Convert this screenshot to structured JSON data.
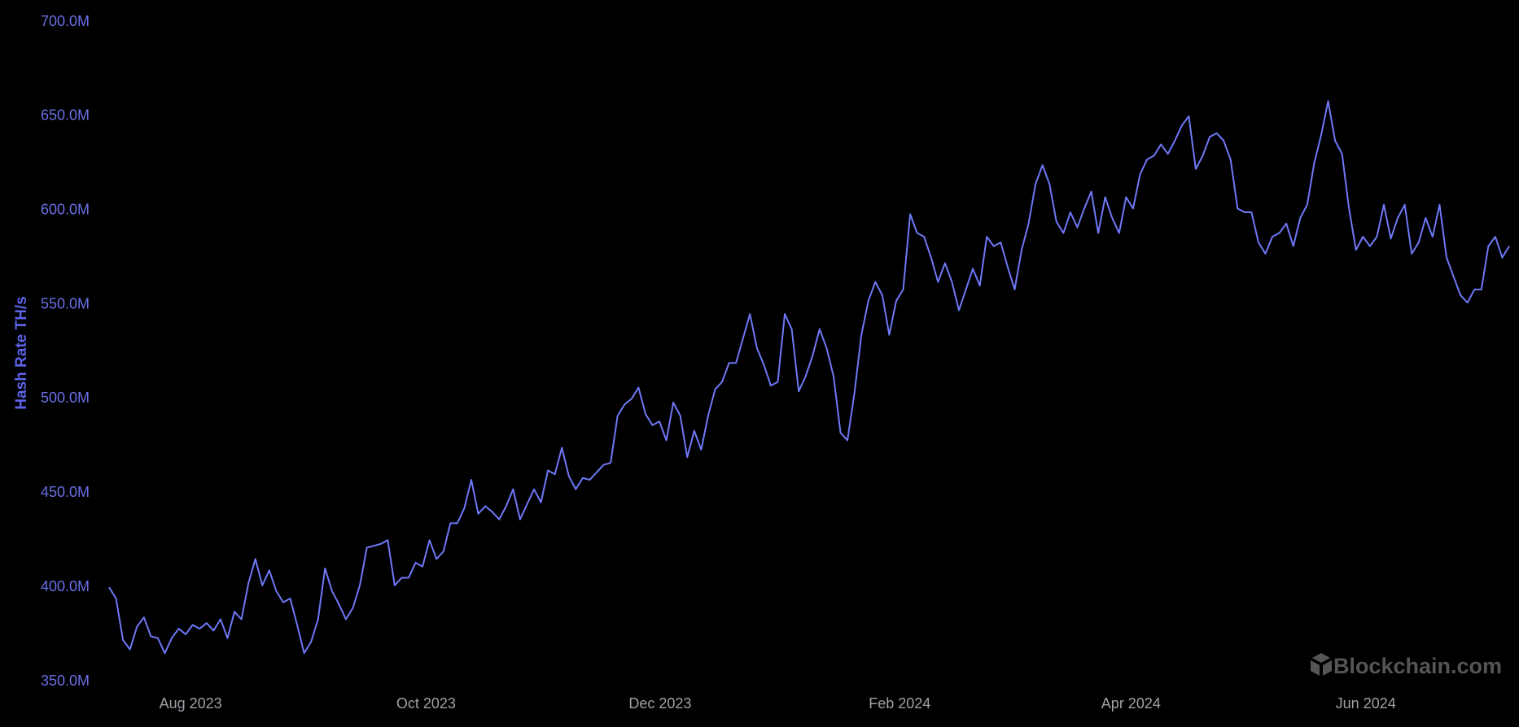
{
  "chart_data": {
    "type": "line",
    "y_axis_label": "Hash Rate TH/s",
    "watermark": "Blockchain.com",
    "color": "#6f78f7",
    "grid": false,
    "xlim": [
      0,
      201
    ],
    "xticks": [
      {
        "value": 11.7,
        "label": "Aug 2023"
      },
      {
        "value": 45.5,
        "label": "Oct 2023"
      },
      {
        "value": 79.1,
        "label": "Dec 2023"
      },
      {
        "value": 113.5,
        "label": "Feb 2024"
      },
      {
        "value": 146.7,
        "label": "Apr 2024"
      },
      {
        "value": 180.4,
        "label": "Jun 2024"
      }
    ],
    "ylim": [
      350000000,
      700000000
    ],
    "yticks": [
      {
        "value": 350000000,
        "label": "350.0M"
      },
      {
        "value": 400000000,
        "label": "400.0M"
      },
      {
        "value": 450000000,
        "label": "450.0M"
      },
      {
        "value": 500000000,
        "label": "500.0M"
      },
      {
        "value": 550000000,
        "label": "550.0M"
      },
      {
        "value": 600000000,
        "label": "600.0M"
      },
      {
        "value": 650000000,
        "label": "650.0M"
      },
      {
        "value": 700000000,
        "label": "700.0M"
      }
    ],
    "values": [
      400000000,
      394000000,
      372000000,
      367000000,
      379000000,
      384000000,
      374000000,
      373000000,
      365000000,
      373000000,
      378000000,
      375000000,
      380000000,
      378000000,
      381000000,
      377000000,
      383000000,
      373000000,
      387000000,
      383000000,
      402000000,
      415000000,
      401000000,
      409000000,
      398000000,
      392000000,
      394000000,
      380000000,
      365000000,
      371000000,
      383000000,
      410000000,
      398000000,
      391000000,
      383000000,
      389000000,
      401000000,
      421000000,
      422000000,
      423000000,
      425000000,
      401000000,
      405000000,
      405000000,
      413000000,
      411000000,
      425000000,
      415000000,
      419000000,
      434000000,
      434000000,
      442000000,
      457000000,
      439000000,
      443000000,
      440000000,
      436000000,
      443000000,
      452000000,
      436000000,
      444000000,
      452000000,
      445000000,
      462000000,
      460000000,
      474000000,
      459000000,
      452000000,
      458000000,
      457000000,
      461000000,
      465000000,
      466000000,
      491000000,
      497000000,
      500000000,
      506000000,
      492000000,
      486000000,
      488000000,
      478000000,
      498000000,
      491000000,
      469000000,
      483000000,
      473000000,
      491000000,
      505000000,
      509000000,
      519000000,
      519000000,
      532000000,
      545000000,
      527000000,
      518000000,
      507000000,
      509000000,
      545000000,
      537000000,
      504000000,
      512000000,
      523000000,
      537000000,
      527000000,
      512000000,
      482000000,
      478000000,
      503000000,
      534000000,
      552000000,
      562000000,
      555000000,
      534000000,
      552000000,
      558000000,
      598000000,
      588000000,
      586000000,
      575000000,
      562000000,
      572000000,
      562000000,
      547000000,
      558000000,
      569000000,
      560000000,
      586000000,
      581000000,
      583000000,
      570000000,
      558000000,
      579000000,
      593000000,
      614000000,
      624000000,
      614000000,
      594000000,
      588000000,
      599000000,
      591000000,
      601000000,
      610000000,
      588000000,
      607000000,
      596000000,
      588000000,
      607000000,
      601000000,
      619000000,
      627000000,
      629000000,
      635000000,
      630000000,
      637000000,
      645000000,
      650000000,
      622000000,
      629000000,
      639000000,
      641000000,
      637000000,
      627000000,
      601000000,
      599000000,
      599000000,
      583000000,
      577000000,
      586000000,
      588000000,
      593000000,
      581000000,
      596000000,
      603000000,
      625000000,
      640000000,
      658000000,
      637000000,
      630000000,
      601000000,
      579000000,
      586000000,
      581000000,
      586000000,
      603000000,
      585000000,
      596000000,
      603000000,
      577000000,
      583000000,
      596000000,
      586000000,
      603000000,
      575000000,
      565000000,
      555000000,
      551000000,
      558000000,
      558000000,
      581000000,
      586000000,
      575000000,
      581000000
    ]
  }
}
